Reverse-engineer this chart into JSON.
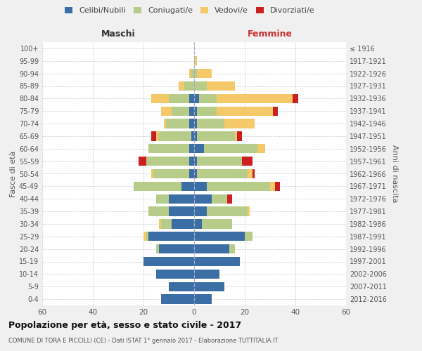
{
  "age_groups_bottom_to_top": [
    "0-4",
    "5-9",
    "10-14",
    "15-19",
    "20-24",
    "25-29",
    "30-34",
    "35-39",
    "40-44",
    "45-49",
    "50-54",
    "55-59",
    "60-64",
    "65-69",
    "70-74",
    "75-79",
    "80-84",
    "85-89",
    "90-94",
    "95-99",
    "100+"
  ],
  "birth_years_bottom_to_top": [
    "2012-2016",
    "2007-2011",
    "2002-2006",
    "1997-2001",
    "1992-1996",
    "1987-1991",
    "1982-1986",
    "1977-1981",
    "1972-1976",
    "1967-1971",
    "1962-1966",
    "1957-1961",
    "1952-1956",
    "1947-1951",
    "1942-1946",
    "1937-1941",
    "1932-1936",
    "1927-1931",
    "1922-1926",
    "1917-1921",
    "≤ 1916"
  ],
  "male": {
    "celibi": [
      13,
      10,
      15,
      20,
      14,
      18,
      9,
      10,
      10,
      5,
      2,
      2,
      2,
      1,
      2,
      2,
      2,
      0,
      0,
      0,
      0
    ],
    "coniugati": [
      0,
      0,
      0,
      0,
      1,
      1,
      4,
      8,
      5,
      19,
      14,
      17,
      16,
      13,
      9,
      7,
      8,
      4,
      1,
      0,
      0
    ],
    "vedovi": [
      0,
      0,
      0,
      0,
      0,
      1,
      1,
      0,
      0,
      0,
      1,
      0,
      0,
      1,
      1,
      4,
      7,
      2,
      1,
      0,
      0
    ],
    "divorziati": [
      0,
      0,
      0,
      0,
      0,
      0,
      0,
      0,
      0,
      0,
      0,
      3,
      0,
      2,
      0,
      0,
      0,
      0,
      0,
      0,
      0
    ]
  },
  "female": {
    "nubili": [
      7,
      12,
      10,
      18,
      14,
      20,
      3,
      5,
      7,
      5,
      1,
      1,
      4,
      1,
      1,
      1,
      2,
      0,
      0,
      0,
      0
    ],
    "coniugate": [
      0,
      0,
      0,
      0,
      2,
      3,
      12,
      16,
      6,
      25,
      20,
      18,
      21,
      15,
      11,
      8,
      7,
      5,
      1,
      0,
      0
    ],
    "vedove": [
      0,
      0,
      0,
      0,
      0,
      0,
      0,
      1,
      0,
      2,
      2,
      0,
      3,
      1,
      12,
      22,
      30,
      11,
      6,
      1,
      0
    ],
    "divorziate": [
      0,
      0,
      0,
      0,
      0,
      0,
      0,
      0,
      2,
      2,
      1,
      4,
      0,
      2,
      0,
      2,
      2,
      0,
      0,
      0,
      0
    ]
  },
  "colors": {
    "celibi": "#3a6ea5",
    "coniugati": "#b8cc8a",
    "vedovi": "#f5c96a",
    "divorziati": "#cc2020"
  },
  "title": "Popolazione per età, sesso e stato civile - 2017",
  "subtitle": "COMUNE DI TORA E PICCILLI (CE) - Dati ISTAT 1° gennaio 2017 - Elaborazione TUTTITALIA.IT",
  "xlabel_left": "Maschi",
  "xlabel_right": "Femmine",
  "ylabel_left": "Fasce di età",
  "ylabel_right": "Anni di nascita",
  "xlim": 60,
  "bg_color": "#f0f0f0",
  "plot_bg": "#ffffff"
}
